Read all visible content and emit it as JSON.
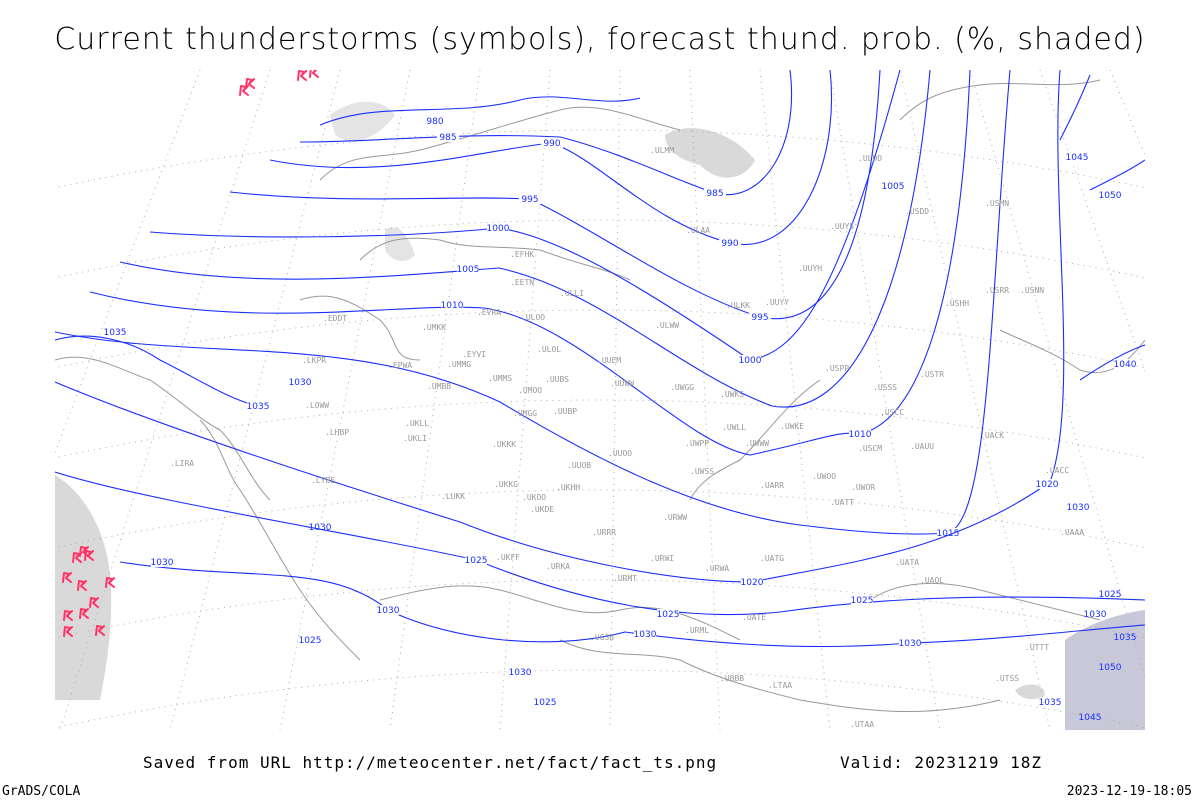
{
  "title": "Current thunderstorms (symbols), forecast thund. prob. (%, shaded)",
  "footer": {
    "saved_from": "Saved from URL http://meteocenter.net/fact/fact_ts.png",
    "valid": "Valid: 20231219 18Z",
    "software": "GrADS/COLA",
    "timestamp": "2023-12-19-18:05"
  },
  "colors": {
    "isobars": "#1a2fff",
    "thunderstorm_symbols": "#ff3366",
    "shading": "#d9d9d9",
    "coastlines": "#999999"
  },
  "thunderstorm_symbol_icon": "thunderstorm-symbol",
  "isobar_labels": [
    "980",
    "985",
    "990",
    "995",
    "1000",
    "1005",
    "1010",
    "1015",
    "1020",
    "1025",
    "1030",
    "1035",
    "1040",
    "1045",
    "1050"
  ],
  "stations": [
    "EFHK",
    "EETN",
    "ULLI",
    "EVRA",
    "ULOO",
    "EDDT",
    "UMKK",
    "ULOL",
    "EYVI",
    "EPWA",
    "UMMG",
    "UUEM",
    "UMMS",
    "UMOO",
    "UUBS",
    "UUWW",
    "UWGG",
    "UWKS",
    "UMBB",
    "UMGG",
    "UUBP",
    "ULKK",
    "UUYY",
    "ULWW",
    "UWPP",
    "UWWW",
    "UWLL",
    "UWKE",
    "UKLL",
    "UKLI",
    "LHBP",
    "UKKK",
    "UUOO",
    "UUOB",
    "UWSS",
    "UARR",
    "UKHH",
    "UKOO",
    "UKKG",
    "LUKK",
    "LYBE",
    "LIRA",
    "LOWW",
    "LKPR",
    "ULAA",
    "ULMM",
    "UUYH",
    "UUYS",
    "ULDD",
    "USDD",
    "USSS",
    "USCC",
    "USCM",
    "USPP",
    "UAUU",
    "UWOO",
    "UWOR",
    "UATT",
    "URWW",
    "UKDE",
    "UKFF",
    "URKA",
    "URRR",
    "URMT",
    "URWI",
    "URWA",
    "UATG",
    "UATA",
    "UAOL",
    "UACC",
    "UACK",
    "USTR",
    "USNN",
    "USRR",
    "USHH",
    "USMN",
    "UATE",
    "URML",
    "UGSB",
    "UBBB",
    "LTAA",
    "UTAA",
    "UAAA",
    "UTTT",
    "UTSS"
  ]
}
